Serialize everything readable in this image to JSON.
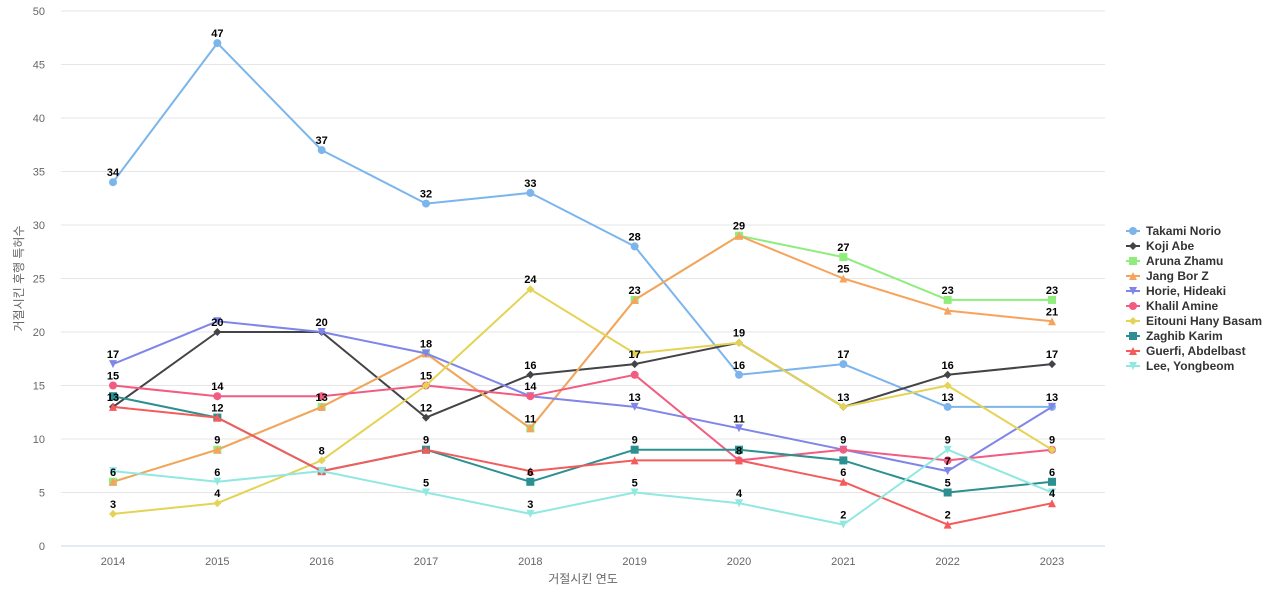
{
  "chart_data": {
    "type": "line",
    "title": "",
    "xlabel": "거절시킨 연도",
    "ylabel": "거절시킨 후행 특허수",
    "ylim": [
      0,
      50
    ],
    "y_ticks": [
      "0",
      "5",
      "10",
      "15",
      "20",
      "25",
      "30",
      "35",
      "40",
      "45",
      "50"
    ],
    "categories": [
      "2014",
      "2015",
      "2016",
      "2017",
      "2018",
      "2019",
      "2020",
      "2021",
      "2022",
      "2023"
    ],
    "grid": true,
    "legend_position": "right",
    "series": [
      {
        "name": "Takami Norio",
        "color": "#7cb5ec",
        "marker": "circle",
        "values": [
          34,
          47,
          37,
          32,
          33,
          28,
          16,
          17,
          13,
          13
        ]
      },
      {
        "name": "Koji Abe",
        "color": "#434348",
        "marker": "diamond",
        "values": [
          13,
          20,
          20,
          12,
          16,
          17,
          19,
          13,
          16,
          17
        ]
      },
      {
        "name": "Aruna Zhamu",
        "color": "#90ed7d",
        "marker": "square",
        "values": [
          6,
          9,
          13,
          18,
          11,
          23,
          29,
          27,
          23,
          23
        ]
      },
      {
        "name": "Jang Bor Z",
        "color": "#f7a35c",
        "marker": "triangle",
        "values": [
          6,
          9,
          13,
          18,
          11,
          23,
          29,
          25,
          22,
          21
        ]
      },
      {
        "name": "Horie, Hideaki",
        "color": "#8085e9",
        "marker": "triangle-down",
        "values": [
          17,
          21,
          20,
          18,
          14,
          13,
          11,
          9,
          7,
          13
        ]
      },
      {
        "name": "Khalil Amine",
        "color": "#f15c80",
        "marker": "circle",
        "values": [
          15,
          14,
          14,
          15,
          14,
          16,
          8,
          9,
          8,
          9
        ]
      },
      {
        "name": "Eitouni Hany Basam",
        "color": "#e4d354",
        "marker": "diamond",
        "values": [
          3,
          4,
          8,
          15,
          24,
          18,
          19,
          13,
          15,
          9
        ]
      },
      {
        "name": "Zaghib Karim",
        "color": "#2b908f",
        "marker": "square",
        "values": [
          14,
          12,
          7,
          9,
          6,
          9,
          9,
          8,
          5,
          6
        ]
      },
      {
        "name": "Guerfi, Abdelbast",
        "color": "#f45b5b",
        "marker": "triangle",
        "values": [
          13,
          12,
          7,
          9,
          7,
          8,
          8,
          6,
          2,
          4
        ]
      },
      {
        "name": "Lee, Yongbeom",
        "color": "#91e8e1",
        "marker": "triangle-down",
        "values": [
          7,
          6,
          7,
          5,
          3,
          5,
          4,
          2,
          9,
          5
        ]
      }
    ],
    "data_labels": [
      {
        "category": "2014",
        "value": 34,
        "text": "34"
      },
      {
        "category": "2015",
        "value": 47,
        "text": "47"
      },
      {
        "category": "2016",
        "value": 37,
        "text": "37"
      },
      {
        "category": "2017",
        "value": 32,
        "text": "32"
      },
      {
        "category": "2018",
        "value": 33,
        "text": "33"
      },
      {
        "category": "2019",
        "value": 28,
        "text": "28"
      },
      {
        "category": "2020",
        "value": 29,
        "text": "29"
      },
      {
        "category": "2021",
        "value": 27,
        "text": "27"
      },
      {
        "category": "2021",
        "value": 25,
        "text": "25"
      },
      {
        "category": "2022",
        "value": 23,
        "text": "23"
      },
      {
        "category": "2023",
        "value": 23,
        "text": "23"
      },
      {
        "category": "2023",
        "value": 21,
        "text": "21"
      },
      {
        "category": "2018",
        "value": 24,
        "text": "24"
      },
      {
        "category": "2019",
        "value": 23,
        "text": "23"
      },
      {
        "category": "2015",
        "value": 20,
        "text": "20"
      },
      {
        "category": "2016",
        "value": 20,
        "text": "20"
      },
      {
        "category": "2020",
        "value": 19,
        "text": "19"
      },
      {
        "category": "2014",
        "value": 17,
        "text": "17"
      },
      {
        "category": "2017",
        "value": 18,
        "text": "18"
      },
      {
        "category": "2019",
        "value": 17,
        "text": "17"
      },
      {
        "category": "2021",
        "value": 17,
        "text": "17"
      },
      {
        "category": "2023",
        "value": 17,
        "text": "17"
      },
      {
        "category": "2018",
        "value": 16,
        "text": "16"
      },
      {
        "category": "2020",
        "value": 16,
        "text": "16"
      },
      {
        "category": "2022",
        "value": 16,
        "text": "16"
      },
      {
        "category": "2014",
        "value": 15,
        "text": "15"
      },
      {
        "category": "2017",
        "value": 15,
        "text": "15"
      },
      {
        "category": "2015",
        "value": 14,
        "text": "14"
      },
      {
        "category": "2018",
        "value": 14,
        "text": "14"
      },
      {
        "category": "2014",
        "value": 13,
        "text": "13"
      },
      {
        "category": "2016",
        "value": 13,
        "text": "13"
      },
      {
        "category": "2019",
        "value": 13,
        "text": "13"
      },
      {
        "category": "2021",
        "value": 13,
        "text": "13"
      },
      {
        "category": "2022",
        "value": 13,
        "text": "13"
      },
      {
        "category": "2023",
        "value": 13,
        "text": "13"
      },
      {
        "category": "2015",
        "value": 12,
        "text": "12"
      },
      {
        "category": "2017",
        "value": 12,
        "text": "12"
      },
      {
        "category": "2018",
        "value": 11,
        "text": "11"
      },
      {
        "category": "2020",
        "value": 11,
        "text": "11"
      },
      {
        "category": "2015",
        "value": 9,
        "text": "9"
      },
      {
        "category": "2017",
        "value": 9,
        "text": "9"
      },
      {
        "category": "2019",
        "value": 9,
        "text": "9"
      },
      {
        "category": "2021",
        "value": 9,
        "text": "9"
      },
      {
        "category": "2022",
        "value": 9,
        "text": "9"
      },
      {
        "category": "2023",
        "value": 9,
        "text": "9"
      },
      {
        "category": "2016",
        "value": 8,
        "text": "8"
      },
      {
        "category": "2020",
        "value": 8,
        "text": "8"
      },
      {
        "category": "2022",
        "value": 7,
        "text": "7"
      },
      {
        "category": "2014",
        "value": 6,
        "text": "6"
      },
      {
        "category": "2015",
        "value": 6,
        "text": "6"
      },
      {
        "category": "2018",
        "value": 6,
        "text": "6"
      },
      {
        "category": "2021",
        "value": 6,
        "text": "6"
      },
      {
        "category": "2023",
        "value": 6,
        "text": "6"
      },
      {
        "category": "2017",
        "value": 5,
        "text": "5"
      },
      {
        "category": "2019",
        "value": 5,
        "text": "5"
      },
      {
        "category": "2022",
        "value": 5,
        "text": "5"
      },
      {
        "category": "2015",
        "value": 4,
        "text": "4"
      },
      {
        "category": "2020",
        "value": 4,
        "text": "4"
      },
      {
        "category": "2023",
        "value": 4,
        "text": "4"
      },
      {
        "category": "2014",
        "value": 3,
        "text": "3"
      },
      {
        "category": "2018",
        "value": 3,
        "text": "3"
      },
      {
        "category": "2021",
        "value": 2,
        "text": "2"
      },
      {
        "category": "2022",
        "value": 2,
        "text": "2"
      }
    ]
  }
}
